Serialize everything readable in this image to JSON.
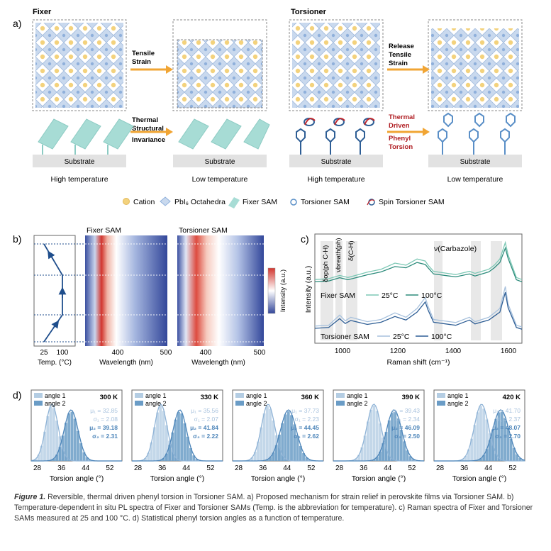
{
  "panel_a": {
    "label": "a)",
    "fixer_title": "Fixer",
    "torsioner_title": "Torsioner",
    "arrow_top_left": [
      "Tensile",
      "Strain"
    ],
    "arrow_bottom_left": [
      "Thermal",
      "Structural",
      "Invariance"
    ],
    "arrow_top_right": [
      "Release",
      "Tensile",
      "Strain"
    ],
    "arrow_bottom_right": [
      "Thermal",
      "Driven",
      "Phenyl",
      "Torsion"
    ],
    "substrate": "Substrate",
    "high_temp": "High temperature",
    "low_temp": "Low temperature",
    "legend": [
      "Cation",
      "PbI₆ Octahedra",
      "Fixer SAM",
      "Torsioner SAM",
      "Spin Torsioner SAM"
    ]
  },
  "panel_b": {
    "label": "b)",
    "fixer_title": "Fixer SAM",
    "torsioner_title": "Torsioner SAM",
    "temp_ticks": [
      "25",
      "100"
    ],
    "temp_label": "Temp. (°C)",
    "wl_ticks": [
      "400",
      "500"
    ],
    "wl_label": "Wavelength (nm)",
    "colorbar_label": "Intensity (a.u.)"
  },
  "panel_c": {
    "label": "c)",
    "annotations": [
      "δop(ph C-H)",
      "νbreath(ph)",
      "δ(C-H)",
      "ν(Carbazole)"
    ],
    "series_group_1": "Fixer SAM",
    "series_group_2": "Torsioner SAM",
    "legend_25": "25°C",
    "legend_100": "100°C",
    "ylabel": "Intensity (a.u.)",
    "xlabel": "Raman shift (cm⁻¹)",
    "x_ticks": [
      "1000",
      "1200",
      "1400",
      "1600"
    ]
  },
  "panel_d": {
    "label": "d)",
    "xlabel": "Torsion angle (°)",
    "x_ticks": [
      "28",
      "36",
      "44",
      "52"
    ],
    "legend": [
      "angle 1",
      "angle 2"
    ]
  },
  "chart_data": [
    {
      "type": "line",
      "panel": "c",
      "xlabel": "Raman shift (cm⁻¹)",
      "ylabel": "Intensity (a.u.)",
      "xlim": [
        910,
        1660
      ],
      "series": [
        {
          "name": "Fixer SAM 25°C",
          "x": [
            910,
            960,
            1000,
            1030,
            1100,
            1150,
            1200,
            1240,
            1280,
            1310,
            1320,
            1340,
            1420,
            1470,
            1490,
            1540,
            1560,
            1580,
            1600,
            1610,
            1640,
            1660
          ],
          "y": [
            0.1,
            0.12,
            0.2,
            0.15,
            0.28,
            0.35,
            0.5,
            0.45,
            0.6,
            0.55,
            0.45,
            0.3,
            0.22,
            0.3,
            0.25,
            0.35,
            0.45,
            0.6,
            1.0,
            0.7,
            0.15,
            0.1
          ]
        },
        {
          "name": "Fixer SAM 100°C",
          "x": [
            910,
            960,
            1000,
            1030,
            1100,
            1150,
            1200,
            1240,
            1280,
            1310,
            1320,
            1340,
            1420,
            1470,
            1490,
            1540,
            1560,
            1580,
            1600,
            1610,
            1640,
            1660
          ],
          "y": [
            0.08,
            0.1,
            0.18,
            0.13,
            0.25,
            0.32,
            0.45,
            0.42,
            0.55,
            0.5,
            0.42,
            0.27,
            0.2,
            0.27,
            0.22,
            0.32,
            0.42,
            0.55,
            0.9,
            0.65,
            0.13,
            0.08
          ]
        },
        {
          "name": "Torsioner SAM 25°C",
          "x": [
            910,
            960,
            1000,
            1020,
            1040,
            1100,
            1150,
            1200,
            1240,
            1280,
            1310,
            1320,
            1340,
            1420,
            1470,
            1490,
            1540,
            1560,
            1580,
            1600,
            1610,
            1640,
            1660
          ],
          "y": [
            0.1,
            0.12,
            0.35,
            0.22,
            0.3,
            0.2,
            0.25,
            0.4,
            0.3,
            0.5,
            0.75,
            0.55,
            0.25,
            0.18,
            0.3,
            0.2,
            0.3,
            0.4,
            0.5,
            1.0,
            0.6,
            0.12,
            0.08
          ]
        },
        {
          "name": "Torsioner SAM 100°C",
          "x": [
            910,
            960,
            1000,
            1020,
            1040,
            1100,
            1150,
            1200,
            1240,
            1280,
            1310,
            1320,
            1340,
            1420,
            1470,
            1490,
            1540,
            1560,
            1580,
            1600,
            1610,
            1640,
            1660
          ],
          "y": [
            0.08,
            0.1,
            0.3,
            0.19,
            0.26,
            0.17,
            0.22,
            0.35,
            0.27,
            0.45,
            0.68,
            0.5,
            0.22,
            0.15,
            0.27,
            0.18,
            0.27,
            0.36,
            0.45,
            0.9,
            0.55,
            0.1,
            0.06
          ]
        }
      ]
    },
    {
      "type": "bar",
      "panel": "d",
      "xlabel": "Torsion angle (°)",
      "xlim": [
        26,
        56
      ],
      "temperatures": [
        "300 K",
        "330 K",
        "360 K",
        "390 K",
        "420 K"
      ],
      "stats": [
        {
          "temp": "300 K",
          "mu1": "μ₁ = 32.85",
          "sigma1": "σ₁ = 2.08",
          "mu2": "μ₂ = 39.18",
          "sigma2": "σ₂ = 2.31",
          "m1": 32.85,
          "s1": 2.08,
          "m2": 39.18,
          "s2": 2.31
        },
        {
          "temp": "330 K",
          "mu1": "μ₁ = 35.56",
          "sigma1": "σ₁ = 2.07",
          "mu2": "μ₂ = 41.84",
          "sigma2": "σ₂ = 2.22",
          "m1": 35.56,
          "s1": 2.07,
          "m2": 41.84,
          "s2": 2.22
        },
        {
          "temp": "360 K",
          "mu1": "μ₁ = 37.73",
          "sigma1": "σ₁ = 2.23",
          "mu2": "μ₂ = 44.45",
          "sigma2": "σ₂ = 2.62",
          "m1": 37.73,
          "s1": 2.23,
          "m2": 44.45,
          "s2": 2.62
        },
        {
          "temp": "390 K",
          "mu1": "μ₁ = 39.43",
          "sigma1": "σ₁ = 2.34",
          "mu2": "μ₂ = 46.09",
          "sigma2": "σ₂ = 2.50",
          "m1": 39.43,
          "s1": 2.34,
          "m2": 46.09,
          "s2": 2.5
        },
        {
          "temp": "420 K",
          "mu1": "μ₁ = 41.70",
          "sigma1": "σ₁ = 2.37",
          "mu2": "μ₂ = 48.07",
          "sigma2": "σ₂ = 2.70",
          "m1": 41.7,
          "s1": 2.37,
          "m2": 48.07,
          "s2": 2.7
        }
      ],
      "colors": {
        "angle1": "#b4cde3",
        "angle2": "#6a9cc6"
      }
    }
  ],
  "caption": {
    "figure_label": "Figure 1.",
    "text": " Reversible, thermal driven phenyl torsion in Torsioner SAM. a) Proposed mechanism for strain relief in perovskite films via Torsioner SAM. b) Temperature-dependent in situ PL spectra of Fixer and Torsioner SAMs (Temp. is the abbreviation for temperature). c) Raman spectra of Fixer and Torsioner SAMs measured at 25 and 100 °C. d) Statistical phenyl torsion angles as a function of temperature."
  }
}
